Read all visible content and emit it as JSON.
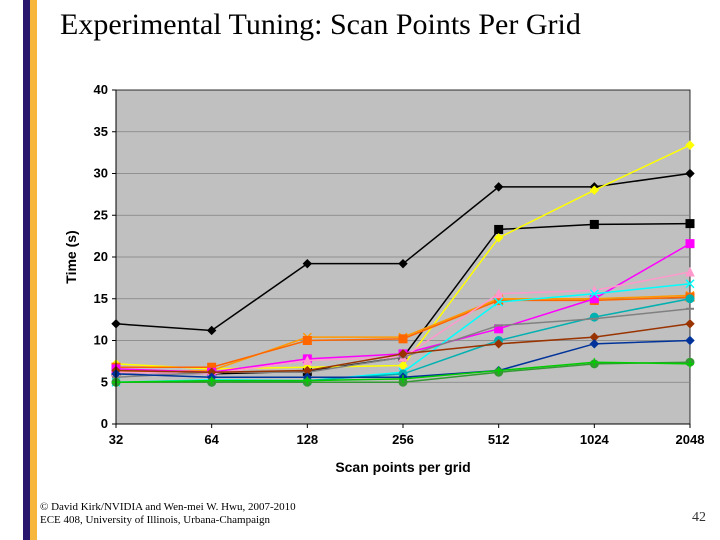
{
  "title": "Experimental Tuning: Scan Points Per Grid",
  "footer_line1": "© David Kirk/NVIDIA and Wen-mei W. Hwu, 2007-2010",
  "footer_line2": "ECE 408, University of Illinois, Urbana-Champaign",
  "page_number": "42",
  "side_bars": {
    "left_color": "#29166f",
    "right_color": "#f7b63c"
  },
  "chart": {
    "type": "line",
    "xlabel": "Scan points per grid",
    "ylabel": "Time (s)",
    "label_fontsize": 14,
    "tick_fontsize": 13,
    "plot_background": "#c0c0c0",
    "gridline_color": "#808080",
    "axis_color": "#000000",
    "ylim": [
      0,
      40
    ],
    "ytick_step": 5,
    "yticks": [
      0,
      5,
      10,
      15,
      20,
      25,
      30,
      35,
      40
    ],
    "x_categories": [
      "32",
      "64",
      "128",
      "256",
      "512",
      "1024",
      "2048"
    ],
    "marker_size": 4,
    "line_width": 1.5,
    "series": [
      {
        "values": [
          12,
          11.2,
          19.2,
          19.2,
          28.4,
          28.4,
          30
        ],
        "color": "#000000",
        "marker": "diamond"
      },
      {
        "values": [
          6.2,
          6.0,
          6.3,
          8.0,
          23.3,
          23.9,
          24
        ],
        "color": "#000000",
        "marker": "square"
      },
      {
        "values": [
          7.2,
          6.6,
          6.8,
          7.0,
          22.3,
          28.0,
          33.4
        ],
        "color": "#ffff00",
        "marker": "diamond"
      },
      {
        "values": [
          6.2,
          6.4,
          10.4,
          10.4,
          15.0,
          15.0,
          15.4
        ],
        "color": "#ff9900",
        "marker": "x"
      },
      {
        "values": [
          6.8,
          6.8,
          10.0,
          10.2,
          14.8,
          14.8,
          15.2
        ],
        "color": "#ff6600",
        "marker": "square"
      },
      {
        "values": [
          6.6,
          6.2,
          7.8,
          8.4,
          11.4,
          15.0,
          21.6
        ],
        "color": "#ff00ff",
        "marker": "square"
      },
      {
        "values": [
          6.2,
          6.0,
          7.6,
          8.0,
          15.6,
          16.0,
          18.2
        ],
        "color": "#ff99cc",
        "marker": "triangle"
      },
      {
        "values": [
          5.0,
          5.3,
          5.2,
          6.2,
          14.6,
          15.6,
          16.8
        ],
        "color": "#00ffff",
        "marker": "x"
      },
      {
        "values": [
          5.0,
          5.0,
          5.2,
          6.0,
          10.0,
          12.8,
          15.0
        ],
        "color": "#00b0b0",
        "marker": "circle"
      },
      {
        "values": [
          5.6,
          6.2,
          6.2,
          8.0,
          11.8,
          12.6,
          13.8
        ],
        "color": "#808080",
        "marker": "line"
      },
      {
        "values": [
          6.4,
          6.2,
          6.4,
          8.4,
          9.6,
          10.4,
          12.0
        ],
        "color": "#993300",
        "marker": "diamond"
      },
      {
        "values": [
          6.0,
          5.6,
          5.6,
          5.6,
          6.4,
          9.6,
          10.0
        ],
        "color": "#003399",
        "marker": "diamond"
      },
      {
        "values": [
          5.0,
          5.0,
          5.0,
          5.0,
          6.2,
          7.2,
          7.4
        ],
        "color": "#339933",
        "marker": "circle"
      },
      {
        "values": [
          5.0,
          5.2,
          5.2,
          5.4,
          6.4,
          7.4,
          7.2
        ],
        "color": "#00cc00",
        "marker": "plus"
      }
    ]
  }
}
